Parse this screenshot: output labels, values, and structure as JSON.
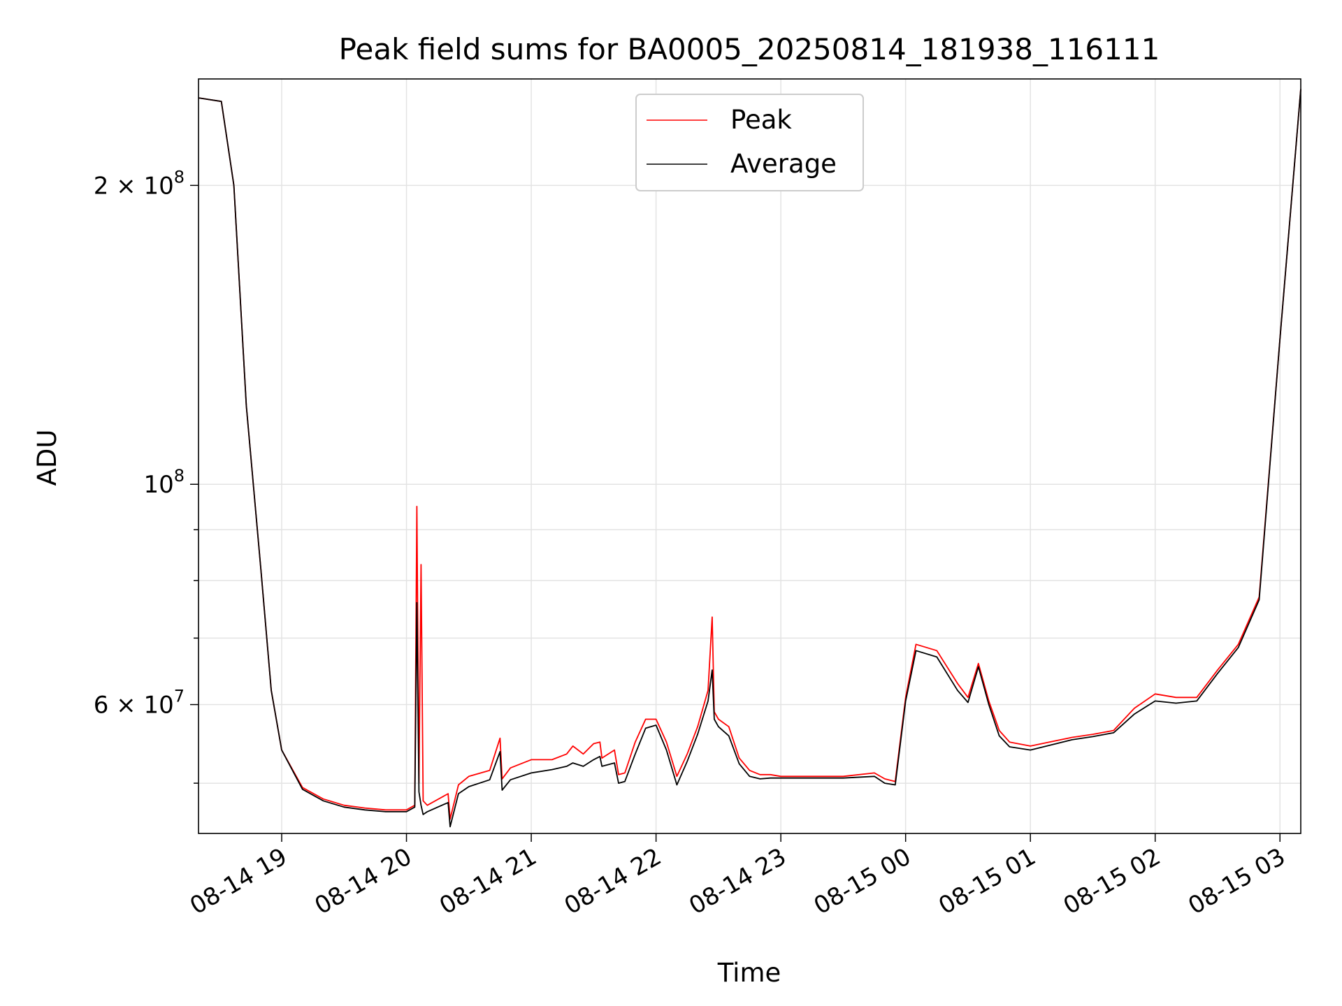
{
  "chart_data": {
    "type": "line",
    "title": "Peak field sums for BA0005_20250814_181938_116111",
    "xlabel": "Time",
    "ylabel": "ADU",
    "y_scale": "log",
    "ylim": [
      44500000,
      256000000
    ],
    "xlim": [
      "2025-08-14 18:20",
      "2025-08-15 03:10"
    ],
    "grid": true,
    "legend_placement": "upper center",
    "x_tick_labels": [
      "08-14 19",
      "08-14 20",
      "08-14 21",
      "08-14 22",
      "08-14 23",
      "08-15 00",
      "08-15 01",
      "08-15 02",
      "08-15 03"
    ],
    "x_tick_values": [
      "2025-08-14 19:00",
      "2025-08-14 20:00",
      "2025-08-14 21:00",
      "2025-08-14 22:00",
      "2025-08-14 23:00",
      "2025-08-15 00:00",
      "2025-08-15 01:00",
      "2025-08-15 02:00",
      "2025-08-15 03:00"
    ],
    "y_tick_labels": [
      {
        "value": 200000000,
        "label": "2 × 10",
        "exp": "8"
      },
      {
        "value": 100000000,
        "label": "10",
        "exp": "8"
      },
      {
        "value": 60000000,
        "label": "6 × 10",
        "exp": "7"
      }
    ],
    "y_minor_ticks": [
      50000000,
      70000000,
      80000000,
      90000000
    ],
    "series": [
      {
        "name": "Peak",
        "color": "#ff0000",
        "x": [
          "2025-08-14 18:20",
          "2025-08-14 18:31",
          "2025-08-14 18:37",
          "2025-08-14 18:43",
          "2025-08-14 18:50",
          "2025-08-14 18:55",
          "2025-08-14 19:00",
          "2025-08-14 19:10",
          "2025-08-14 19:20",
          "2025-08-14 19:30",
          "2025-08-14 19:40",
          "2025-08-14 19:50",
          "2025-08-14 20:00",
          "2025-08-14 20:04",
          "2025-08-14 20:05",
          "2025-08-14 20:06",
          "2025-08-14 20:07",
          "2025-08-14 20:08",
          "2025-08-14 20:10",
          "2025-08-14 20:20",
          "2025-08-14 20:21",
          "2025-08-14 20:25",
          "2025-08-14 20:30",
          "2025-08-14 20:40",
          "2025-08-14 20:45",
          "2025-08-14 20:46",
          "2025-08-14 20:50",
          "2025-08-14 21:00",
          "2025-08-14 21:10",
          "2025-08-14 21:17",
          "2025-08-14 21:20",
          "2025-08-14 21:25",
          "2025-08-14 21:30",
          "2025-08-14 21:33",
          "2025-08-14 21:34",
          "2025-08-14 21:40",
          "2025-08-14 21:42",
          "2025-08-14 21:45",
          "2025-08-14 21:50",
          "2025-08-14 21:55",
          "2025-08-14 22:00",
          "2025-08-14 22:05",
          "2025-08-14 22:10",
          "2025-08-14 22:15",
          "2025-08-14 22:20",
          "2025-08-14 22:25",
          "2025-08-14 22:27",
          "2025-08-14 22:28",
          "2025-08-14 22:30",
          "2025-08-14 22:35",
          "2025-08-14 22:40",
          "2025-08-14 22:45",
          "2025-08-14 22:50",
          "2025-08-14 22:55",
          "2025-08-14 23:00",
          "2025-08-14 23:30",
          "2025-08-14 23:45",
          "2025-08-14 23:50",
          "2025-08-14 23:55",
          "2025-08-15 00:00",
          "2025-08-15 00:05",
          "2025-08-15 00:15",
          "2025-08-15 00:25",
          "2025-08-15 00:30",
          "2025-08-15 00:35",
          "2025-08-15 00:40",
          "2025-08-15 00:45",
          "2025-08-15 00:50",
          "2025-08-15 01:00",
          "2025-08-15 01:20",
          "2025-08-15 01:30",
          "2025-08-15 01:40",
          "2025-08-15 01:50",
          "2025-08-15 02:00",
          "2025-08-15 02:10",
          "2025-08-15 02:20",
          "2025-08-15 02:30",
          "2025-08-15 02:40",
          "2025-08-15 02:50",
          "2025-08-15 03:00",
          "2025-08-15 03:10"
        ],
        "y": [
          245000000,
          243000000,
          200000000,
          120000000,
          82000000,
          62000000,
          54000000,
          49500000,
          48200000,
          47500000,
          47200000,
          47000000,
          47000000,
          47500000,
          95000000,
          50000000,
          83000000,
          48000000,
          47500000,
          48800000,
          46000000,
          49800000,
          50800000,
          51500000,
          55500000,
          50500000,
          51800000,
          52800000,
          52800000,
          53500000,
          54500000,
          53500000,
          54800000,
          55000000,
          53000000,
          54000000,
          51000000,
          51200000,
          55000000,
          58000000,
          58000000,
          55000000,
          50800000,
          53500000,
          57000000,
          62000000,
          73500000,
          59000000,
          58000000,
          57000000,
          53000000,
          51500000,
          51000000,
          51000000,
          50800000,
          50800000,
          51200000,
          50500000,
          50200000,
          61000000,
          69000000,
          68000000,
          63000000,
          61000000,
          66000000,
          60500000,
          56500000,
          55000000,
          54500000,
          55600000,
          56000000,
          56500000,
          59500000,
          61500000,
          61000000,
          61000000,
          65000000,
          69000000,
          77000000,
          140000000,
          250000000
        ]
      },
      {
        "name": "Average",
        "color": "#000000",
        "x": [
          "2025-08-14 18:20",
          "2025-08-14 18:31",
          "2025-08-14 18:37",
          "2025-08-14 18:43",
          "2025-08-14 18:50",
          "2025-08-14 18:55",
          "2025-08-14 19:00",
          "2025-08-14 19:10",
          "2025-08-14 19:20",
          "2025-08-14 19:30",
          "2025-08-14 19:40",
          "2025-08-14 19:50",
          "2025-08-14 20:00",
          "2025-08-14 20:04",
          "2025-08-14 20:05",
          "2025-08-14 20:06",
          "2025-08-14 20:07",
          "2025-08-14 20:08",
          "2025-08-14 20:10",
          "2025-08-14 20:20",
          "2025-08-14 20:21",
          "2025-08-14 20:25",
          "2025-08-14 20:30",
          "2025-08-14 20:40",
          "2025-08-14 20:45",
          "2025-08-14 20:46",
          "2025-08-14 20:50",
          "2025-08-14 21:00",
          "2025-08-14 21:10",
          "2025-08-14 21:17",
          "2025-08-14 21:20",
          "2025-08-14 21:25",
          "2025-08-14 21:30",
          "2025-08-14 21:33",
          "2025-08-14 21:34",
          "2025-08-14 21:40",
          "2025-08-14 21:42",
          "2025-08-14 21:45",
          "2025-08-14 21:50",
          "2025-08-14 21:55",
          "2025-08-14 22:00",
          "2025-08-14 22:05",
          "2025-08-14 22:10",
          "2025-08-14 22:15",
          "2025-08-14 22:20",
          "2025-08-14 22:25",
          "2025-08-14 22:27",
          "2025-08-14 22:28",
          "2025-08-14 22:30",
          "2025-08-14 22:35",
          "2025-08-14 22:40",
          "2025-08-14 22:45",
          "2025-08-14 22:50",
          "2025-08-14 22:55",
          "2025-08-14 23:00",
          "2025-08-14 23:30",
          "2025-08-14 23:45",
          "2025-08-14 23:50",
          "2025-08-14 23:55",
          "2025-08-15 00:00",
          "2025-08-15 00:05",
          "2025-08-15 00:15",
          "2025-08-15 00:25",
          "2025-08-15 00:30",
          "2025-08-15 00:35",
          "2025-08-15 00:40",
          "2025-08-15 00:45",
          "2025-08-15 00:50",
          "2025-08-15 01:00",
          "2025-08-15 01:20",
          "2025-08-15 01:30",
          "2025-08-15 01:40",
          "2025-08-15 01:50",
          "2025-08-15 02:00",
          "2025-08-15 02:10",
          "2025-08-15 02:20",
          "2025-08-15 02:30",
          "2025-08-15 02:40",
          "2025-08-15 02:50",
          "2025-08-15 03:00",
          "2025-08-15 03:10"
        ],
        "y": [
          245000000,
          243000000,
          200000000,
          120000000,
          82000000,
          62000000,
          54000000,
          49300000,
          48000000,
          47300000,
          47000000,
          46800000,
          46800000,
          47300000,
          76000000,
          49000000,
          47500000,
          46500000,
          46800000,
          47800000,
          45200000,
          48800000,
          49600000,
          50400000,
          53800000,
          49200000,
          50400000,
          51200000,
          51600000,
          52000000,
          52400000,
          52000000,
          52800000,
          53200000,
          52000000,
          52400000,
          50000000,
          50200000,
          53500000,
          56800000,
          57200000,
          54000000,
          49800000,
          52600000,
          56000000,
          60500000,
          65000000,
          58000000,
          57000000,
          55800000,
          52300000,
          50800000,
          50500000,
          50600000,
          50600000,
          50600000,
          50800000,
          50000000,
          49800000,
          60500000,
          68000000,
          67000000,
          62000000,
          60300000,
          65500000,
          60000000,
          55800000,
          54400000,
          54000000,
          55300000,
          55700000,
          56200000,
          58700000,
          60500000,
          60200000,
          60500000,
          64500000,
          68500000,
          76500000,
          140000000,
          250000000
        ]
      }
    ]
  }
}
